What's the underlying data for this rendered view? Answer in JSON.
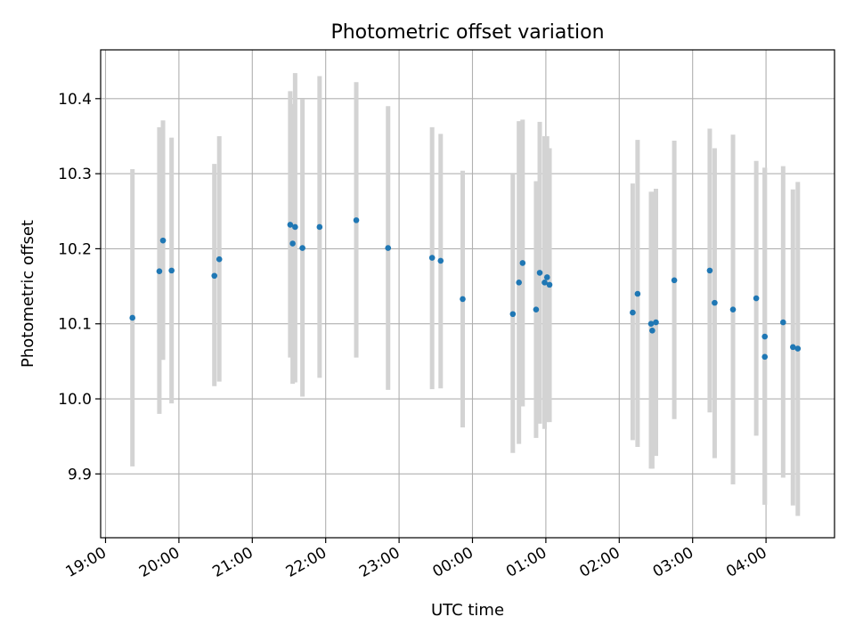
{
  "chart_data": {
    "type": "scatter",
    "title": "Photometric offset variation",
    "xlabel": "UTC time",
    "ylabel": "Photometric offset",
    "grid": true,
    "x_axis": {
      "kind": "time",
      "range": [
        "18:56",
        "04:56"
      ],
      "ticks": [
        "19:00",
        "20:00",
        "21:00",
        "22:00",
        "23:00",
        "00:00",
        "01:00",
        "02:00",
        "03:00",
        "04:00"
      ]
    },
    "y_axis": {
      "range": [
        9.815,
        10.465
      ],
      "ticks": [
        "9.9",
        "10.0",
        "10.1",
        "10.2",
        "10.3",
        "10.4"
      ]
    },
    "error_bar_color": "#d3d3d3",
    "marker_color": "#1f77b4",
    "points": [
      {
        "x": "19:22",
        "y": 10.108,
        "ylow": 9.91,
        "yhigh": 10.306
      },
      {
        "x": "19:44",
        "y": 10.17,
        "ylow": 9.98,
        "yhigh": 10.362
      },
      {
        "x": "19:47",
        "y": 10.211,
        "ylow": 10.052,
        "yhigh": 10.371
      },
      {
        "x": "19:54",
        "y": 10.171,
        "ylow": 9.994,
        "yhigh": 10.348
      },
      {
        "x": "20:29",
        "y": 10.164,
        "ylow": 10.017,
        "yhigh": 10.313
      },
      {
        "x": "20:33",
        "y": 10.186,
        "ylow": 10.023,
        "yhigh": 10.35
      },
      {
        "x": "21:31",
        "y": 10.232,
        "ylow": 10.055,
        "yhigh": 10.41
      },
      {
        "x": "21:33",
        "y": 10.207,
        "ylow": 10.02,
        "yhigh": 10.393
      },
      {
        "x": "21:35",
        "y": 10.229,
        "ylow": 10.022,
        "yhigh": 10.434
      },
      {
        "x": "21:41",
        "y": 10.201,
        "ylow": 10.003,
        "yhigh": 10.399
      },
      {
        "x": "21:55",
        "y": 10.229,
        "ylow": 10.028,
        "yhigh": 10.43
      },
      {
        "x": "22:25",
        "y": 10.238,
        "ylow": 10.055,
        "yhigh": 10.422
      },
      {
        "x": "22:51",
        "y": 10.201,
        "ylow": 10.012,
        "yhigh": 10.39
      },
      {
        "x": "23:27",
        "y": 10.188,
        "ylow": 10.013,
        "yhigh": 10.362
      },
      {
        "x": "23:34",
        "y": 10.184,
        "ylow": 10.014,
        "yhigh": 10.353
      },
      {
        "x": "23:52",
        "y": 10.133,
        "ylow": 9.962,
        "yhigh": 10.304
      },
      {
        "x": "00:33",
        "y": 10.113,
        "ylow": 9.928,
        "yhigh": 10.299
      },
      {
        "x": "00:38",
        "y": 10.155,
        "ylow": 9.94,
        "yhigh": 10.37
      },
      {
        "x": "00:41",
        "y": 10.181,
        "ylow": 9.99,
        "yhigh": 10.372
      },
      {
        "x": "00:52",
        "y": 10.119,
        "ylow": 9.948,
        "yhigh": 10.29
      },
      {
        "x": "00:55",
        "y": 10.168,
        "ylow": 9.967,
        "yhigh": 10.369
      },
      {
        "x": "00:59",
        "y": 10.155,
        "ylow": 9.96,
        "yhigh": 10.35
      },
      {
        "x": "01:01",
        "y": 10.162,
        "ylow": 9.969,
        "yhigh": 10.35
      },
      {
        "x": "01:03",
        "y": 10.152,
        "ylow": 9.969,
        "yhigh": 10.334
      },
      {
        "x": "02:11",
        "y": 10.115,
        "ylow": 9.945,
        "yhigh": 10.287
      },
      {
        "x": "02:15",
        "y": 10.14,
        "ylow": 9.936,
        "yhigh": 10.345
      },
      {
        "x": "02:26",
        "y": 10.1,
        "ylow": 9.907,
        "yhigh": 10.276
      },
      {
        "x": "02:27",
        "y": 10.091,
        "ylow": 9.907,
        "yhigh": 10.276
      },
      {
        "x": "02:30",
        "y": 10.102,
        "ylow": 9.924,
        "yhigh": 10.28
      },
      {
        "x": "02:45",
        "y": 10.158,
        "ylow": 9.973,
        "yhigh": 10.344
      },
      {
        "x": "03:14",
        "y": 10.171,
        "ylow": 9.982,
        "yhigh": 10.36
      },
      {
        "x": "03:18",
        "y": 10.128,
        "ylow": 9.921,
        "yhigh": 10.334
      },
      {
        "x": "03:33",
        "y": 10.119,
        "ylow": 9.886,
        "yhigh": 10.352
      },
      {
        "x": "03:52",
        "y": 10.134,
        "ylow": 9.951,
        "yhigh": 10.317
      },
      {
        "x": "03:59",
        "y": 10.083,
        "ylow": 9.859,
        "yhigh": 10.308
      },
      {
        "x": "03:59",
        "y": 10.056,
        "ylow": 9.859,
        "yhigh": 10.308
      },
      {
        "x": "04:14",
        "y": 10.102,
        "ylow": 9.895,
        "yhigh": 10.31
      },
      {
        "x": "04:22",
        "y": 10.069,
        "ylow": 9.858,
        "yhigh": 10.279
      },
      {
        "x": "04:26",
        "y": 10.067,
        "ylow": 9.844,
        "yhigh": 10.289
      }
    ]
  }
}
